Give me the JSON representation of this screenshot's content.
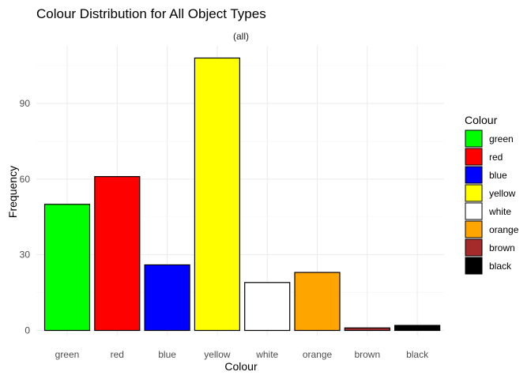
{
  "chart_data": {
    "type": "bar",
    "title": "Colour Distribution for All Object Types",
    "subtitle": "(all)",
    "xlabel": "Colour",
    "ylabel": "Frequency",
    "categories": [
      "green",
      "red",
      "blue",
      "yellow",
      "white",
      "orange",
      "brown",
      "black"
    ],
    "values": [
      50,
      61,
      26,
      108,
      19,
      23,
      1,
      2
    ],
    "colors": [
      "#00ff00",
      "#ff0000",
      "#0000ff",
      "#ffff00",
      "#ffffff",
      "#ffa500",
      "#a52a2a",
      "#000000"
    ],
    "ylim": [
      0,
      112
    ],
    "yticks": [
      0,
      30,
      60,
      90
    ],
    "grid": true,
    "legend": {
      "title": "Colour",
      "position": "right",
      "items": [
        "green",
        "red",
        "blue",
        "yellow",
        "white",
        "orange",
        "brown",
        "black"
      ]
    }
  }
}
